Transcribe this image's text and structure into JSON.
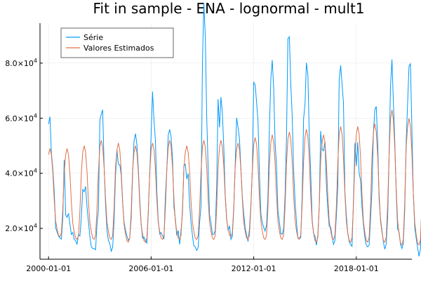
{
  "chart_data": {
    "type": "line",
    "title": "Fit in sample - ENA - lognormal - mult1",
    "xlabel": "",
    "ylabel": "",
    "xlim": [
      "1999-07-01",
      "2021-04-01"
    ],
    "ylim": [
      8800,
      94500
    ],
    "grid": true,
    "legend_position": "top-left",
    "x_ticks": [
      "2000-01-01",
      "2006-01-01",
      "2012-01-01",
      "2018-01-01"
    ],
    "y_ticks": [
      {
        "value": 20000,
        "mantissa": "2.0",
        "base": "×10",
        "exp": "4"
      },
      {
        "value": 40000,
        "mantissa": "4.0",
        "base": "×10",
        "exp": "4"
      },
      {
        "value": 60000,
        "mantissa": "6.0",
        "base": "×10",
        "exp": "4"
      },
      {
        "value": 80000,
        "mantissa": "8.0",
        "base": "×10",
        "exp": "4"
      }
    ],
    "series": [
      {
        "name": "Série",
        "color": "#009AFA",
        "seasonal_shape": [
          1.2,
          1.25,
          1.2,
          0.95,
          0.65,
          0.45,
          0.38,
          0.33,
          0.3,
          0.33,
          0.55,
          0.9
        ],
        "annual_peaks": [
          55000,
          26000,
          36000,
          60000,
          48000,
          57000,
          63000,
          54000,
          42000,
          92000,
          62000,
          56000,
          70000,
          76000,
          86000,
          72000,
          50000,
          80000,
          46000,
          62000,
          74000,
          76000
        ],
        "annual_troughs": [
          16000,
          16000,
          13000,
          12000,
          15000,
          14000,
          16000,
          16000,
          13000,
          16000,
          18000,
          17000,
          18000,
          17000,
          16000,
          15000,
          16000,
          13000,
          14000,
          14000,
          12000,
          11000
        ]
      },
      {
        "name": "Valores Estimados",
        "color": "#E26F46",
        "seasonal_shape": [
          1.0,
          1.05,
          1.0,
          0.85,
          0.62,
          0.45,
          0.38,
          0.33,
          0.32,
          0.35,
          0.55,
          0.85
        ],
        "annual_peaks": [
          49000,
          49000,
          50000,
          52000,
          51000,
          50000,
          51000,
          52000,
          50000,
          52000,
          52000,
          51000,
          53000,
          54000,
          55000,
          56000,
          54000,
          57000,
          57000,
          58000,
          63000,
          60000
        ],
        "annual_troughs": [
          17000,
          16000,
          16000,
          16000,
          15000,
          15000,
          16000,
          16000,
          16000,
          16000,
          17000,
          16000,
          16000,
          16000,
          16000,
          15000,
          16000,
          15000,
          15000,
          15000,
          14000,
          14000
        ]
      }
    ],
    "first_year": 2000,
    "n_years": 22
  }
}
